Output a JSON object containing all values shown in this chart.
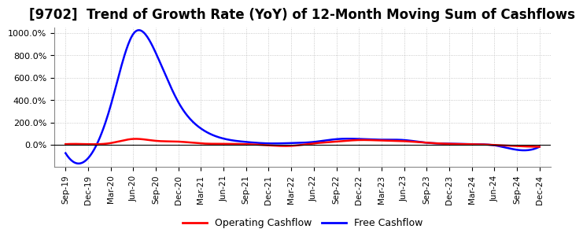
{
  "title": "[9702]  Trend of Growth Rate (YoY) of 12-Month Moving Sum of Cashflows",
  "title_fontsize": 12,
  "background_color": "#ffffff",
  "grid_color": "#bbbbbb",
  "legend_entries": [
    "Operating Cashflow",
    "Free Cashflow"
  ],
  "legend_colors": [
    "#ff0000",
    "#0000ff"
  ],
  "x_labels": [
    "Sep-19",
    "Dec-19",
    "Mar-20",
    "Jun-20",
    "Sep-20",
    "Dec-20",
    "Mar-21",
    "Jun-21",
    "Sep-21",
    "Dec-21",
    "Mar-22",
    "Jun-22",
    "Sep-22",
    "Dec-22",
    "Mar-23",
    "Jun-23",
    "Sep-23",
    "Dec-23",
    "Mar-24",
    "Jun-24",
    "Sep-24",
    "Dec-24"
  ],
  "operating_cashflow": [
    5,
    5,
    15,
    52,
    35,
    28,
    12,
    8,
    5,
    -5,
    -10,
    12,
    28,
    42,
    38,
    32,
    18,
    8,
    5,
    -2,
    -12,
    -18
  ],
  "free_cashflow": [
    -75,
    -120,
    350,
    990,
    820,
    380,
    145,
    55,
    25,
    12,
    15,
    25,
    50,
    52,
    45,
    42,
    18,
    10,
    5,
    -5,
    -45,
    -18
  ]
}
